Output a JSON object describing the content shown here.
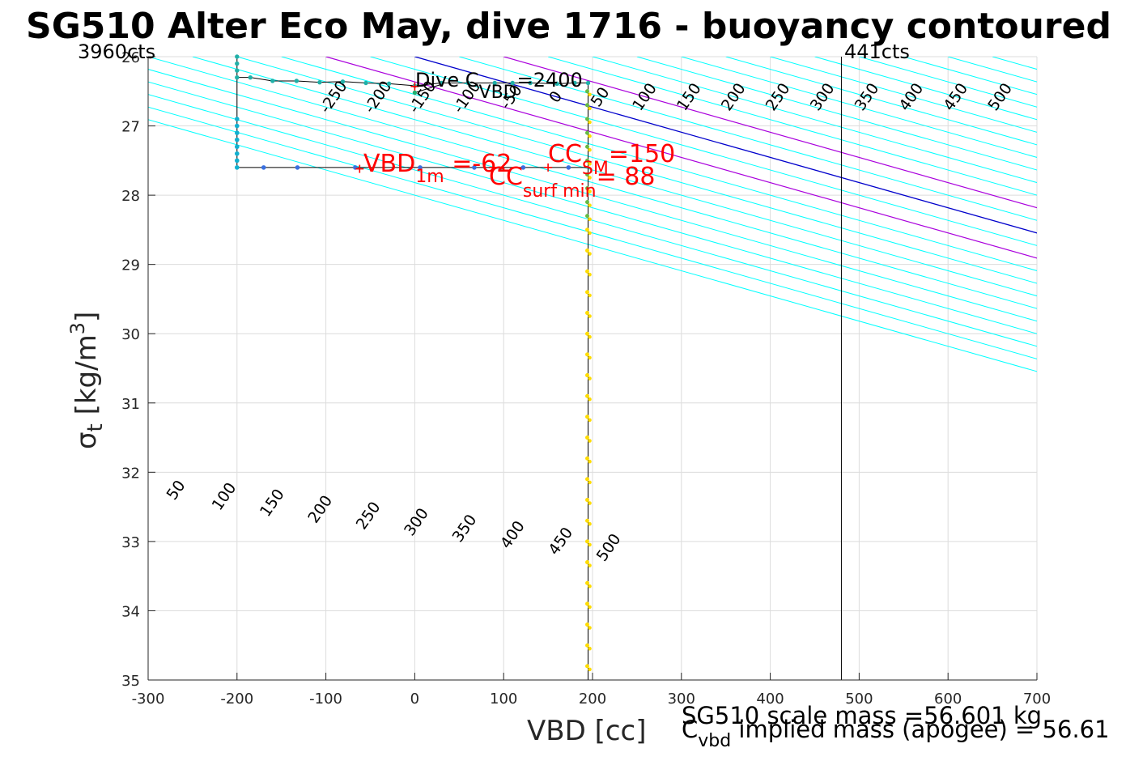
{
  "chart_data": {
    "type": "scatter",
    "title": "SG510 Alter Eco May, dive 1716 - buoyancy contoured",
    "xlabel": "VBD [cc]",
    "ylabel_main": "σ",
    "ylabel_sub": "t",
    "ylabel_unit": " [kg/m",
    "ylabel_sup": "3",
    "ylabel_close": "]",
    "xlim": [
      -300,
      700
    ],
    "ylim": [
      26,
      35
    ],
    "y_reversed": true,
    "grid": true,
    "xticks": [
      -300,
      -200,
      -100,
      0,
      100,
      200,
      300,
      400,
      500,
      600,
      700
    ],
    "yticks": [
      26,
      27,
      28,
      29,
      30,
      31,
      32,
      33,
      34,
      35
    ],
    "top_left_label": "3960cts",
    "top_right_label": "441cts",
    "vbd_limit_x": 480,
    "contour_offsets": [
      -550,
      -500,
      -450,
      -400,
      -350,
      -300,
      -250,
      -200,
      -150,
      -100,
      -50,
      0,
      50,
      100,
      150,
      200,
      250,
      300,
      350,
      400,
      450,
      500,
      550,
      600,
      650,
      700
    ],
    "contour_slope": 275,
    "highlight_offsets": {
      "blue": 0,
      "purple": [
        -100,
        100
      ]
    },
    "contour_labels_top": [
      -250,
      -200,
      -150,
      -100,
      -50,
      0,
      50,
      100,
      150,
      200,
      250,
      300,
      350,
      400,
      450,
      500
    ],
    "contour_labels_bottom": [
      50,
      100,
      150,
      200,
      250,
      300,
      350,
      400,
      450,
      500
    ],
    "colors": {
      "contour": "#00ffff",
      "zero_contour": "#0000cc",
      "highlight_contour": "#aa00dd",
      "grid": "#dcdcdc",
      "annotation": "#ff0000",
      "apogee_line_green": "#66bb44",
      "apogee_line_yellow": "#ffdd00",
      "trajectory": "#000000"
    },
    "descent_points": [
      {
        "x": 195,
        "y": 26.5
      },
      {
        "x": 195,
        "y": 26.7
      },
      {
        "x": 195,
        "y": 26.9
      },
      {
        "x": 195,
        "y": 27.1
      },
      {
        "x": 195,
        "y": 27.3
      },
      {
        "x": 195,
        "y": 27.5
      },
      {
        "x": 195,
        "y": 27.7
      },
      {
        "x": 195,
        "y": 27.9
      },
      {
        "x": 195,
        "y": 28.1
      },
      {
        "x": 195,
        "y": 28.3
      },
      {
        "x": 195,
        "y": 28.5
      },
      {
        "x": 195,
        "y": 28.8
      },
      {
        "x": 195,
        "y": 29.1
      },
      {
        "x": 195,
        "y": 29.4
      },
      {
        "x": 195,
        "y": 29.7
      },
      {
        "x": 195,
        "y": 30.0
      },
      {
        "x": 195,
        "y": 30.3
      },
      {
        "x": 195,
        "y": 30.6
      },
      {
        "x": 195,
        "y": 30.9
      },
      {
        "x": 195,
        "y": 31.2
      },
      {
        "x": 195,
        "y": 31.5
      },
      {
        "x": 195,
        "y": 31.8
      },
      {
        "x": 195,
        "y": 32.1
      },
      {
        "x": 195,
        "y": 32.4
      },
      {
        "x": 195,
        "y": 32.7
      },
      {
        "x": 195,
        "y": 33.0
      },
      {
        "x": 195,
        "y": 33.3
      },
      {
        "x": 195,
        "y": 33.6
      },
      {
        "x": 195,
        "y": 33.9
      },
      {
        "x": 195,
        "y": 34.2
      },
      {
        "x": 195,
        "y": 34.5
      },
      {
        "x": 195,
        "y": 34.8
      }
    ],
    "climb_top_points": [
      {
        "x": -200,
        "y": 26.0
      },
      {
        "x": -200,
        "y": 26.1
      },
      {
        "x": -200,
        "y": 26.2
      },
      {
        "x": -200,
        "y": 26.3
      },
      {
        "x": -185,
        "y": 26.3
      },
      {
        "x": -160,
        "y": 26.35
      },
      {
        "x": -133,
        "y": 26.35
      },
      {
        "x": -107,
        "y": 26.37
      },
      {
        "x": -81,
        "y": 26.36
      },
      {
        "x": -55,
        "y": 26.38
      },
      {
        "x": -29,
        "y": 26.39
      },
      {
        "x": 0,
        "y": 26.42
      },
      {
        "x": 30,
        "y": 26.38
      },
      {
        "x": 60,
        "y": 26.38
      },
      {
        "x": 90,
        "y": 26.38
      },
      {
        "x": 110,
        "y": 26.38
      },
      {
        "x": 130,
        "y": 26.38
      },
      {
        "x": 160,
        "y": 26.39
      },
      {
        "x": 180,
        "y": 26.38
      },
      {
        "x": 195,
        "y": 26.38
      }
    ],
    "climb_bottom_points": [
      {
        "x": -200,
        "y": 26.9
      },
      {
        "x": -200,
        "y": 27.0
      },
      {
        "x": -200,
        "y": 27.1
      },
      {
        "x": -200,
        "y": 27.2
      },
      {
        "x": -200,
        "y": 27.3
      },
      {
        "x": -200,
        "y": 27.4
      },
      {
        "x": -200,
        "y": 27.5
      },
      {
        "x": -200,
        "y": 27.6
      },
      {
        "x": -170,
        "y": 27.6
      },
      {
        "x": -132,
        "y": 27.6
      },
      {
        "x": -67,
        "y": 27.6
      },
      {
        "x": 6,
        "y": 27.6
      },
      {
        "x": 67,
        "y": 27.6
      },
      {
        "x": 122,
        "y": 27.6
      },
      {
        "x": 173,
        "y": 27.6
      }
    ],
    "markers": [
      {
        "x": 0,
        "y": 26.43
      },
      {
        "x": -62,
        "y": 27.62
      },
      {
        "x": 88,
        "y": 27.6
      },
      {
        "x": 150,
        "y": 27.6
      }
    ],
    "annotations": {
      "dive_c": {
        "main": "Dive C",
        "sub": "VBD",
        "rest": "=2400"
      },
      "vbd1m": {
        "main": "VBD",
        "sub": "1m",
        "rest": " =-62"
      },
      "ccsm": {
        "main": "CC",
        "sub": "SM",
        "rest": "=150"
      },
      "ccsurf": {
        "main": "CC",
        "sub": "surf min",
        "rest": "= 88"
      },
      "scale_mass": "SG510 scale mass =56.601 kg",
      "implied_main": "C",
      "implied_sub": "vbd",
      "implied_rest": " implied mass (apogee) = 56.61"
    }
  }
}
